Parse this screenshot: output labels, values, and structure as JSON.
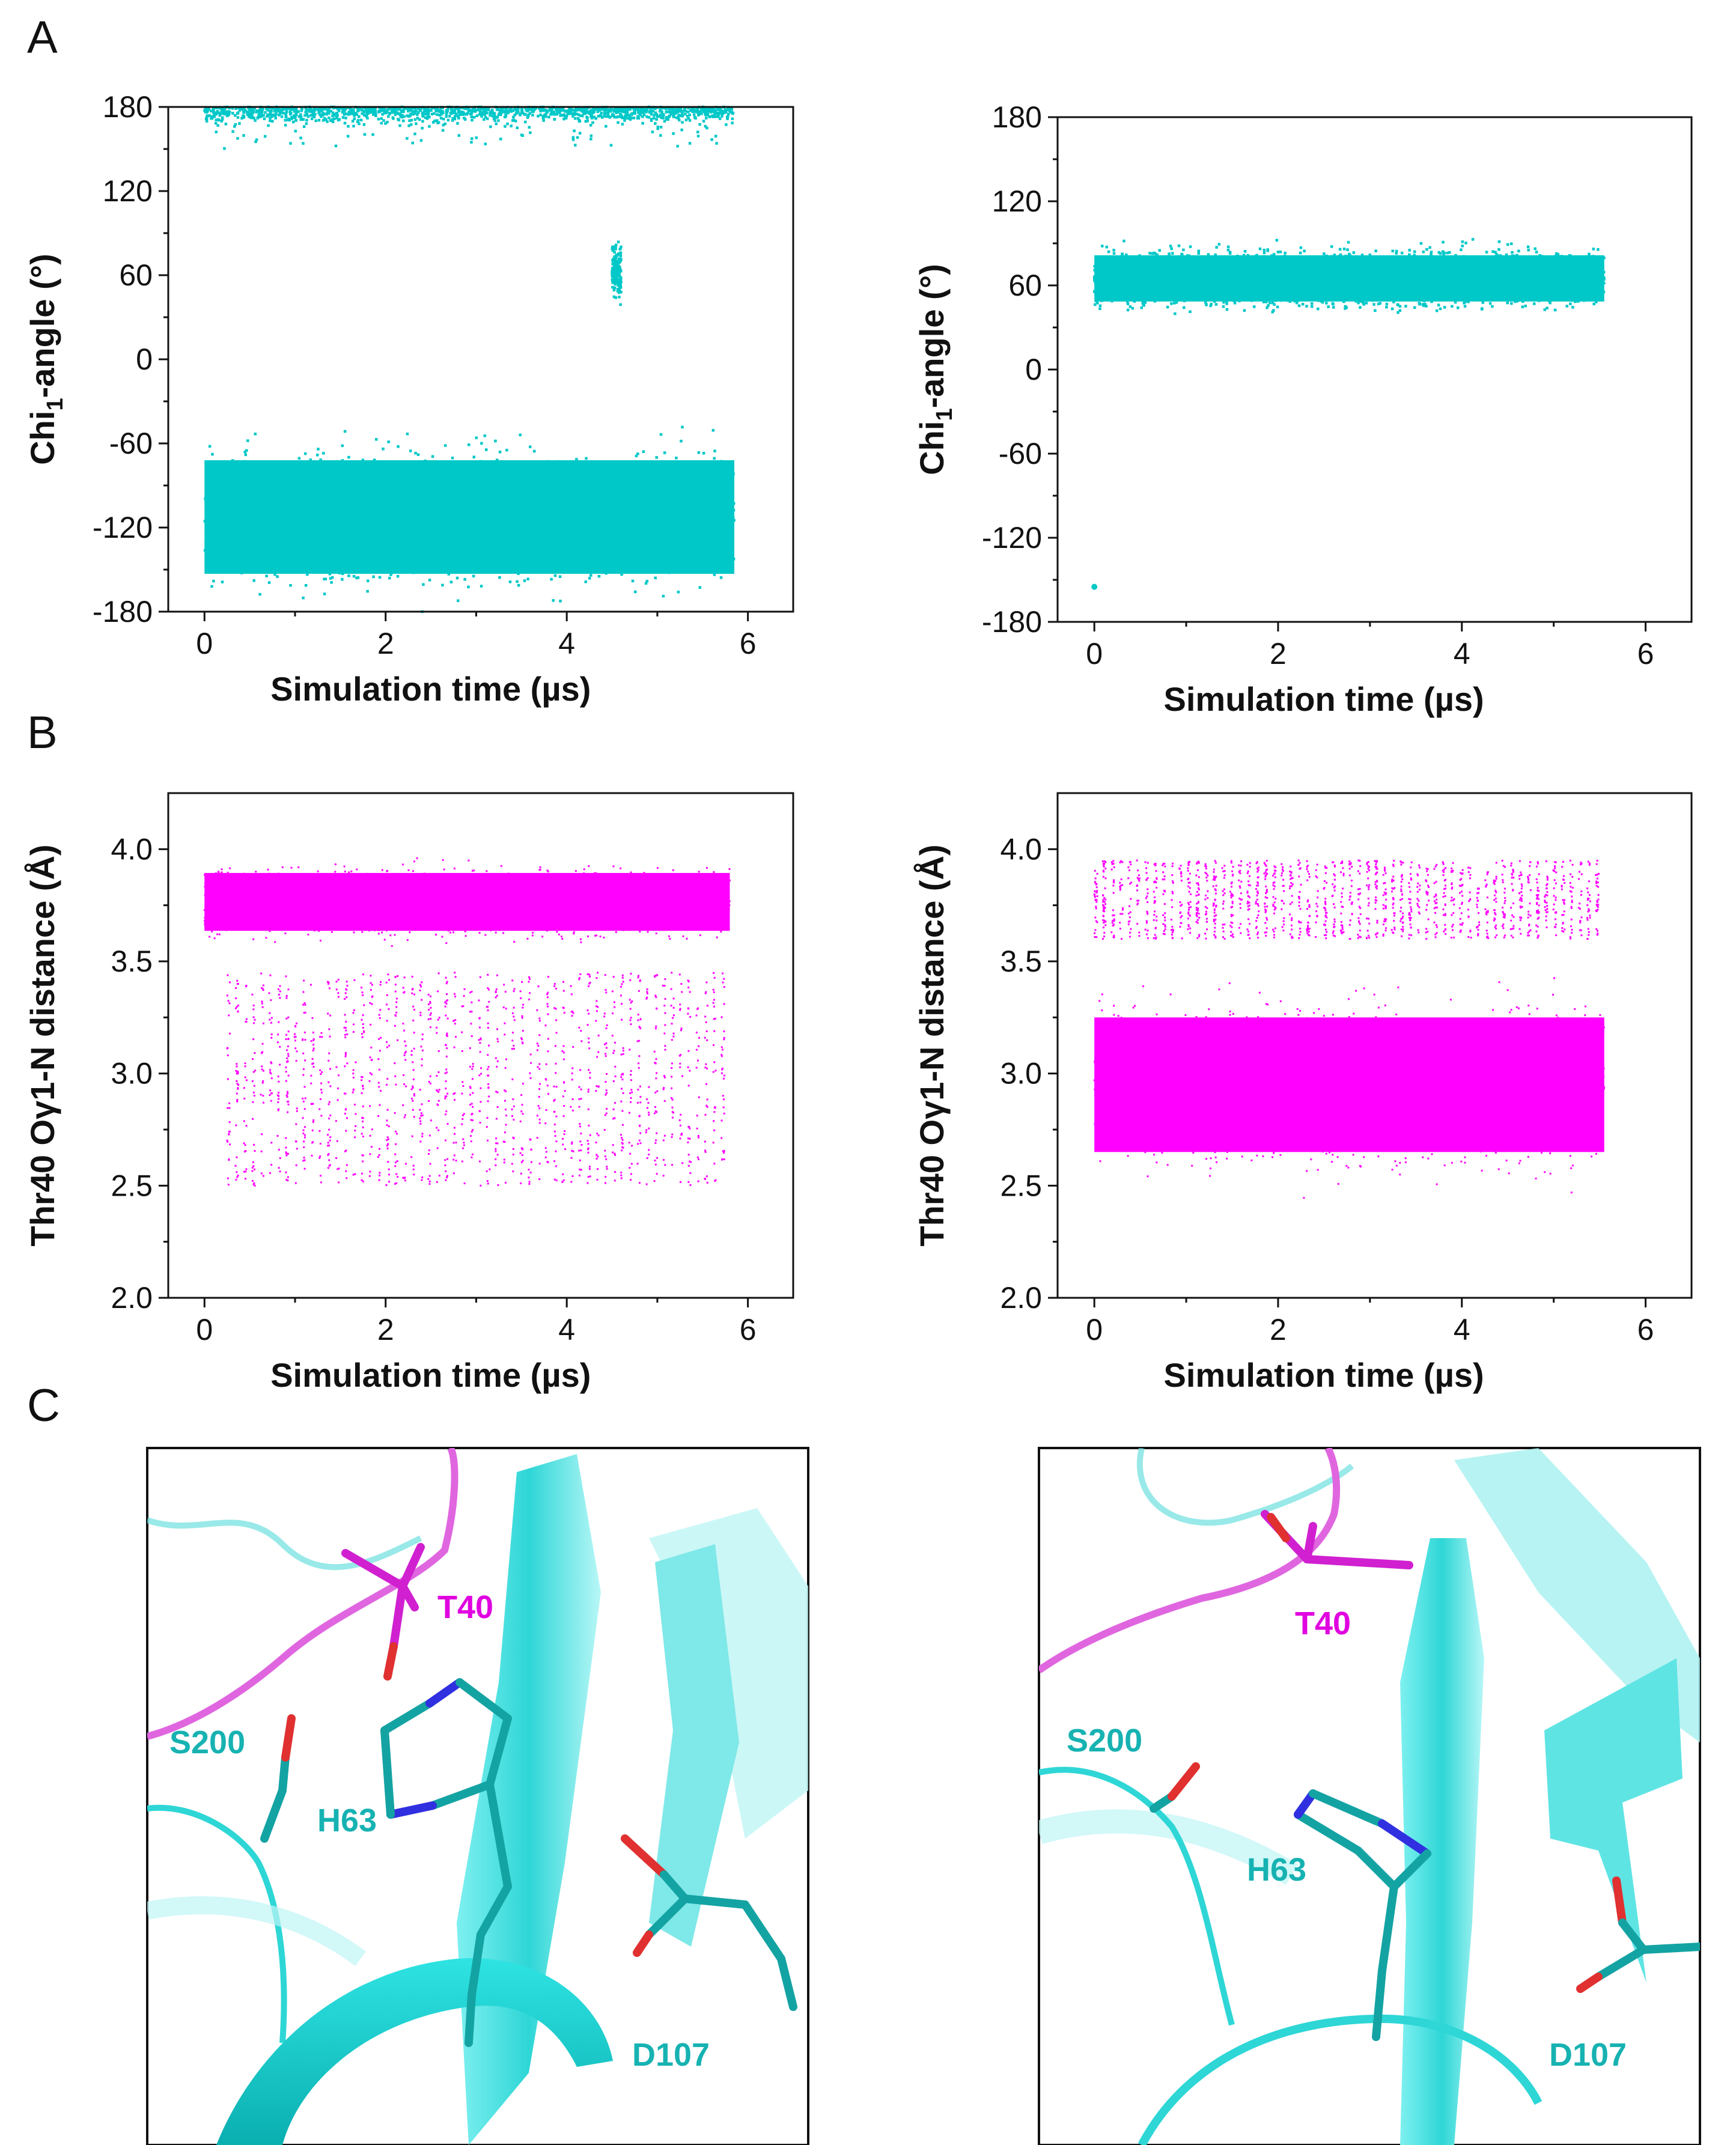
{
  "panel_labels": {
    "a": "A",
    "b": "B",
    "c": "C"
  },
  "colors": {
    "cyan": "#00C8C8",
    "magenta": "#FF00FF",
    "axis": "#111111",
    "ribbon": "#2ED6D6",
    "ribbon_dark": "#1BA9A9"
  },
  "chart_data": [
    {
      "id": "A-left",
      "type": "scatter",
      "color": "#00C8C8",
      "xlabel": "Simulation time (µs)",
      "ylabel": "Chi1-angle (°)",
      "ylabel_parts": {
        "pre": "Chi",
        "sub": "1",
        "post": "-angle (°)"
      },
      "xlim": [
        -0.4,
        6.5
      ],
      "ylim": [
        -180,
        180
      ],
      "xticks": [
        "0",
        "2",
        "4",
        "6"
      ],
      "yticks": [
        "-180",
        "-120",
        "-60",
        "0",
        "60",
        "120",
        "180"
      ],
      "clusters": [
        {
          "x": [
            0.0,
            5.85
          ],
          "y": [
            150,
            180
          ],
          "density": "sparse-top"
        },
        {
          "x": [
            0.0,
            5.85
          ],
          "y": [
            -180,
            -45
          ],
          "density": "dense"
        },
        {
          "x": [
            4.5,
            4.6
          ],
          "y": [
            38,
            90
          ],
          "density": "transition"
        }
      ]
    },
    {
      "id": "A-right",
      "type": "scatter",
      "color": "#00C8C8",
      "xlabel": "Simulation time (µs)",
      "ylabel": "Chi1-angle (°)",
      "ylabel_parts": {
        "pre": "Chi",
        "sub": "1",
        "post": "-angle (°)"
      },
      "xlim": [
        -0.4,
        6.5
      ],
      "ylim": [
        -180,
        180
      ],
      "xticks": [
        "0",
        "2",
        "4",
        "6"
      ],
      "yticks": [
        "-180",
        "-120",
        "-60",
        "0",
        "60",
        "120",
        "180"
      ],
      "clusters": [
        {
          "x": [
            0.0,
            5.55
          ],
          "y": [
            35,
            95
          ],
          "density": "dense-band"
        }
      ],
      "outliers": [
        {
          "x": 0.0,
          "y": -155
        }
      ]
    },
    {
      "id": "B-left",
      "type": "scatter",
      "color": "#FF00FF",
      "xlabel": "Simulation time (µs)",
      "ylabel": "Thr40 Oγ1-N distance (Å)",
      "xlim": [
        -0.4,
        6.5
      ],
      "ylim": [
        2.0,
        4.25
      ],
      "xticks": [
        "0",
        "2",
        "4",
        "6"
      ],
      "yticks": [
        "2.0",
        "2.5",
        "3.0",
        "3.5",
        "4.0"
      ],
      "clusters": [
        {
          "x": [
            0.0,
            5.8
          ],
          "y": [
            3.55,
            3.98
          ],
          "density": "dense"
        },
        {
          "x": [
            0.25,
            5.8
          ],
          "y": [
            2.5,
            3.45
          ],
          "density": "striped"
        }
      ]
    },
    {
      "id": "B-right",
      "type": "scatter",
      "color": "#FF00FF",
      "xlabel": "Simulation time (µs)",
      "ylabel": "Thr40 Oγ1-N distance (Å)",
      "xlim": [
        -0.4,
        6.5
      ],
      "ylim": [
        2.0,
        4.25
      ],
      "xticks": [
        "0",
        "2",
        "4",
        "6"
      ],
      "yticks": [
        "2.0",
        "2.5",
        "3.0",
        "3.5",
        "4.0"
      ],
      "clusters": [
        {
          "x": [
            0.0,
            5.55
          ],
          "y": [
            3.6,
            3.95
          ],
          "density": "striped"
        },
        {
          "x": [
            0.0,
            5.55
          ],
          "y": [
            2.45,
            3.45
          ],
          "density": "dense"
        }
      ]
    }
  ],
  "structures": {
    "left": {
      "labels": {
        "t40": "T40",
        "s200": "S200",
        "h63": "H63",
        "d107": "D107"
      }
    },
    "right": {
      "labels": {
        "t40": "T40",
        "s200": "S200",
        "h63": "H63",
        "d107": "D107"
      }
    }
  }
}
